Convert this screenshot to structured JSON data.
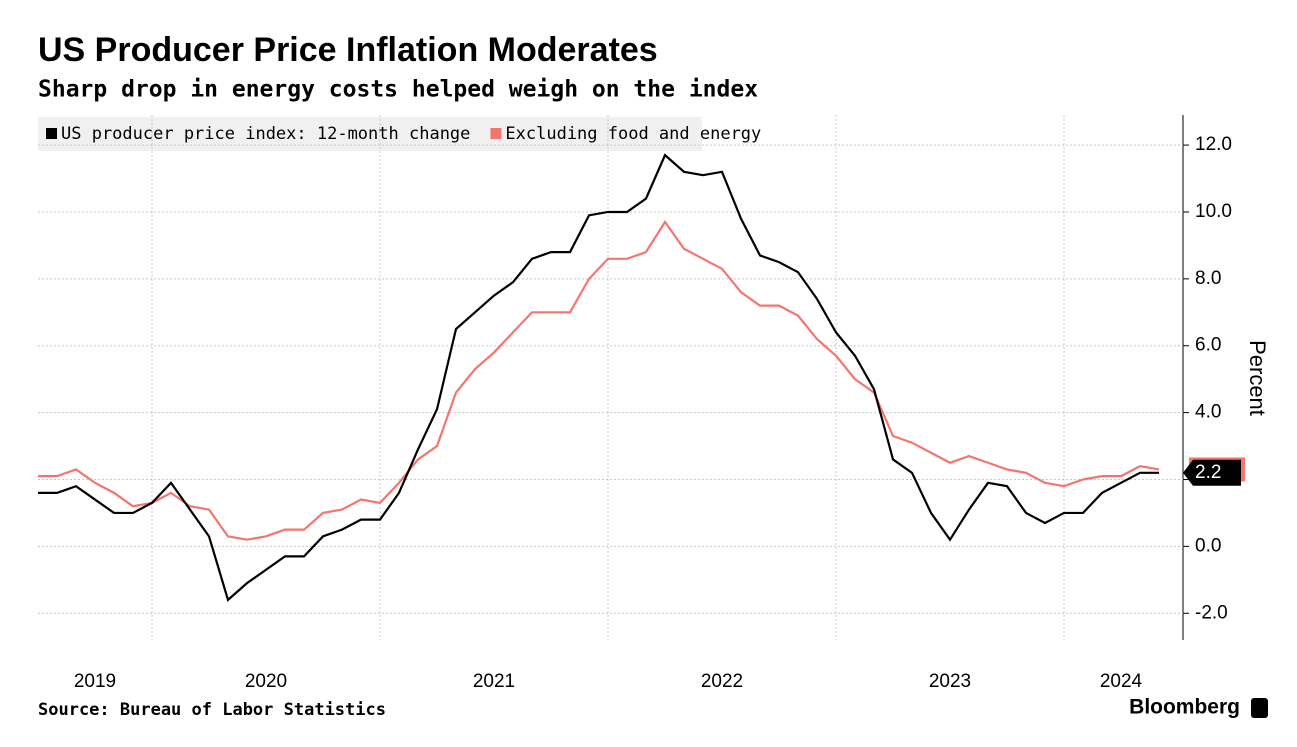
{
  "chart_data": {
    "type": "line",
    "title": "US Producer Price Inflation Moderates",
    "subtitle": "Sharp drop in energy costs helped weigh on the index",
    "source": "Source: Bureau of Labor Statistics",
    "brand": "Bloomberg",
    "y_axis_label": "Percent",
    "categories": [
      null,
      null,
      null,
      "2019",
      null,
      null,
      null,
      null,
      null,
      null,
      null,
      null,
      "2020",
      null,
      null,
      null,
      null,
      null,
      null,
      null,
      null,
      null,
      null,
      null,
      "2021",
      null,
      null,
      null,
      null,
      null,
      null,
      null,
      null,
      null,
      null,
      null,
      "2022",
      null,
      null,
      null,
      null,
      null,
      null,
      null,
      null,
      null,
      null,
      null,
      "2023",
      null,
      null,
      null,
      null,
      null,
      null,
      null,
      null,
      "2024",
      null,
      null
    ],
    "series": [
      {
        "name": "US producer price index: 12-month change",
        "color": "#000000",
        "values": [
          1.6,
          1.6,
          1.8,
          1.4,
          1.0,
          1.0,
          1.3,
          1.9,
          1.1,
          0.3,
          -1.6,
          -1.1,
          -0.7,
          -0.3,
          -0.3,
          0.3,
          0.5,
          0.8,
          0.8,
          1.6,
          2.9,
          4.1,
          6.5,
          7.0,
          7.5,
          7.9,
          8.6,
          8.8,
          8.8,
          9.9,
          10.0,
          10.0,
          10.4,
          11.7,
          11.2,
          11.1,
          11.2,
          9.8,
          8.7,
          8.5,
          8.2,
          7.4,
          6.4,
          5.7,
          4.7,
          2.6,
          2.2,
          1.0,
          0.2,
          1.1,
          1.9,
          1.8,
          1.0,
          0.7,
          1.0,
          1.0,
          1.6,
          1.9,
          2.2,
          2.2
        ]
      },
      {
        "name": "Excluding food and energy",
        "color": "#f4756e",
        "values": [
          2.1,
          2.1,
          2.3,
          1.9,
          1.6,
          1.2,
          1.3,
          1.6,
          1.2,
          1.1,
          0.3,
          0.2,
          0.3,
          0.5,
          0.5,
          1.0,
          1.1,
          1.4,
          1.3,
          1.9,
          2.6,
          3.0,
          4.6,
          5.3,
          5.8,
          6.4,
          7.0,
          7.0,
          7.0,
          8.0,
          8.6,
          8.6,
          8.8,
          9.7,
          8.9,
          8.6,
          8.3,
          7.6,
          7.2,
          7.2,
          6.9,
          6.2,
          5.7,
          5.0,
          4.6,
          3.3,
          3.1,
          2.8,
          2.5,
          2.7,
          2.5,
          2.3,
          2.2,
          1.9,
          1.8,
          2.0,
          2.1,
          2.1,
          2.4,
          2.3
        ]
      }
    ],
    "ylim": [
      -2.8,
      12.9
    ],
    "yticks": [
      {
        "value": -2,
        "label": "-2.0"
      },
      {
        "value": 0,
        "label": "0.0"
      },
      {
        "value": 2,
        "label": "2.0"
      },
      {
        "value": 4,
        "label": "4.0"
      },
      {
        "value": 6,
        "label": "6.0"
      },
      {
        "value": 8,
        "label": "8.0"
      },
      {
        "value": 10,
        "label": "10.0"
      },
      {
        "value": 12,
        "label": "12.0"
      }
    ],
    "grid": true,
    "legend": "top-left"
  }
}
